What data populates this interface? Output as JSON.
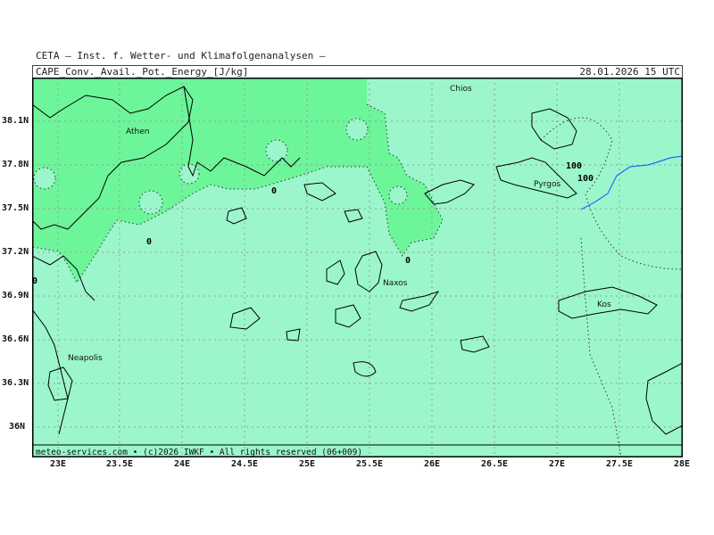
{
  "header": {
    "title": "CETA — Inst. f. Wetter- und Klimafolgenanalysen —",
    "subtitle": "CAPE_Conv._Avail._Pot._Energy_[J/kg]",
    "timestamp": "28.01.2026 15 UTC"
  },
  "footer": {
    "credits": "meteo-services.com • (c)2026 IWKF • All rights reserved (06+009)"
  },
  "axes": {
    "lat_ticks": [
      "38.1N",
      "37.8N",
      "37.5N",
      "37.2N",
      "36.9N",
      "36.6N",
      "36.3N",
      "36N"
    ],
    "lon_ticks": [
      "23E",
      "23.5E",
      "24E",
      "24.5E",
      "25E",
      "25.5E",
      "26E",
      "26.5E",
      "27E",
      "27.5E",
      "28E"
    ]
  },
  "places": [
    {
      "name": "Athen"
    },
    {
      "name": "Chios"
    },
    {
      "name": "Pyrgos"
    },
    {
      "name": "Naxos"
    },
    {
      "name": "Kos"
    },
    {
      "name": "Neapolis"
    }
  ],
  "contour_labels": [
    {
      "text": "0"
    },
    {
      "text": "0"
    },
    {
      "text": "0"
    },
    {
      "text": "0"
    },
    {
      "text": "100"
    },
    {
      "text": "100"
    }
  ],
  "colors": {
    "background_field": "#9bf7cb",
    "cape_low": "#6df59a",
    "grid": "#9a9a9a",
    "coast": "#000000",
    "river": "#1f6bff"
  }
}
